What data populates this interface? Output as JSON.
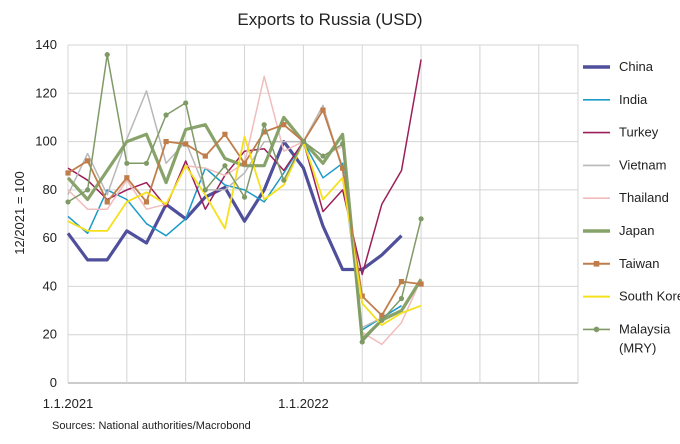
{
  "chart_data": {
    "type": "line",
    "title": "Exports to Russia (USD)",
    "xlabel": "",
    "ylabel": "12/2021 = 100",
    "source": "Sources: National authorities/Macrobond",
    "ylim": [
      0,
      140
    ],
    "yticks": [
      0,
      20,
      40,
      60,
      80,
      100,
      120,
      140
    ],
    "x_months": [
      "2021-01",
      "2021-02",
      "2021-03",
      "2021-04",
      "2021-05",
      "2021-06",
      "2021-07",
      "2021-08",
      "2021-09",
      "2021-10",
      "2021-11",
      "2021-12",
      "2022-01",
      "2022-02",
      "2022-03",
      "2022-04",
      "2022-05",
      "2022-06",
      "2022-07"
    ],
    "x_tick_labels": [
      {
        "month": "2021-01",
        "label": "1.1.2021"
      },
      {
        "month": "2022-01",
        "label": "1.1.2022"
      }
    ],
    "x_range": [
      "2021-01",
      "2023-03"
    ],
    "gridlines_months": [
      "2021-01",
      "2021-04",
      "2021-07",
      "2021-10",
      "2022-01",
      "2022-04",
      "2022-07",
      "2022-10",
      "2023-01",
      "2023-03"
    ],
    "legend_position": "right",
    "series": [
      {
        "name": "China",
        "color": "#4f4f9c",
        "width": 3.2,
        "marker": "none",
        "values": [
          62,
          51,
          51,
          63,
          58,
          74,
          68,
          77,
          81,
          67,
          80,
          100,
          89,
          65,
          47,
          47,
          53,
          61
        ]
      },
      {
        "name": "India",
        "color": "#1b9ac7",
        "width": 1.5,
        "marker": "none",
        "values": [
          69,
          62,
          80,
          76,
          66,
          61,
          68,
          89,
          82,
          80,
          75,
          87,
          100,
          85,
          91,
          22,
          27,
          32
        ]
      },
      {
        "name": "Turkey",
        "color": "#9c1f5a",
        "width": 1.5,
        "marker": "none",
        "values": [
          89,
          84,
          76,
          80,
          83,
          73,
          92,
          72,
          86,
          96,
          97,
          88,
          100,
          71,
          80,
          45,
          74,
          88,
          134
        ]
      },
      {
        "name": "Vietnam",
        "color": "#b8b8b8",
        "width": 1.5,
        "marker": "none",
        "values": [
          78,
          95,
          78,
          101,
          121,
          91,
          100,
          80,
          80,
          87,
          100,
          100,
          100,
          115,
          88,
          23,
          27,
          30,
          42
        ]
      },
      {
        "name": "Thailand",
        "color": "#f2bcbc",
        "width": 1.5,
        "marker": "none",
        "values": [
          80,
          72,
          72,
          84,
          72,
          74,
          90,
          89,
          86,
          91,
          127,
          96,
          100,
          94,
          98,
          21,
          16,
          25,
          43
        ]
      },
      {
        "name": "Japan",
        "color": "#87a36a",
        "width": 3.2,
        "marker": "none",
        "values": [
          85,
          76,
          88,
          100,
          103,
          83,
          105,
          107,
          93,
          90,
          90,
          110,
          100,
          91,
          103,
          18,
          26,
          30,
          43
        ]
      },
      {
        "name": "Taiwan",
        "color": "#c07d4a",
        "width": 1.8,
        "marker": "square",
        "values": [
          87,
          92,
          75,
          85,
          75,
          100,
          99,
          94,
          103,
          91,
          104,
          107,
          100,
          113,
          89,
          36,
          28,
          42,
          41
        ]
      },
      {
        "name": "South Korea",
        "color": "#f5e01c",
        "width": 1.8,
        "marker": "none",
        "values": [
          67,
          63,
          63,
          75,
          79,
          74,
          90,
          78,
          64,
          102,
          76,
          82,
          100,
          76,
          85,
          33,
          24,
          29,
          32
        ]
      },
      {
        "name": "Malaysia (MRY)",
        "color": "#7f9a66",
        "width": 1.5,
        "marker": "circle",
        "values": [
          75,
          80,
          136,
          91,
          91,
          111,
          116,
          80,
          90,
          77,
          107,
          84,
          100,
          94,
          99,
          17,
          26,
          35,
          68
        ]
      }
    ],
    "legend": [
      {
        "label_lines": [
          "China"
        ],
        "color": "#4f4f9c",
        "width": 3.5,
        "marker": "none"
      },
      {
        "label_lines": [
          "India"
        ],
        "color": "#1b9ac7",
        "width": 1.6,
        "marker": "none"
      },
      {
        "label_lines": [
          "Turkey"
        ],
        "color": "#9c1f5a",
        "width": 1.6,
        "marker": "none"
      },
      {
        "label_lines": [
          "Vietnam"
        ],
        "color": "#b8b8b8",
        "width": 1.6,
        "marker": "none"
      },
      {
        "label_lines": [
          "Thailand"
        ],
        "color": "#f2bcbc",
        "width": 1.6,
        "marker": "none"
      },
      {
        "label_lines": [
          "Japan"
        ],
        "color": "#87a36a",
        "width": 3.5,
        "marker": "none"
      },
      {
        "label_lines": [
          "Taiwan"
        ],
        "color": "#c07d4a",
        "width": 2,
        "marker": "square"
      },
      {
        "label_lines": [
          "South Korea"
        ],
        "color": "#f5e01c",
        "width": 2,
        "marker": "none"
      },
      {
        "label_lines": [
          "Malaysia",
          "(MRY)"
        ],
        "color": "#7f9a66",
        "width": 1.6,
        "marker": "circle"
      }
    ]
  }
}
